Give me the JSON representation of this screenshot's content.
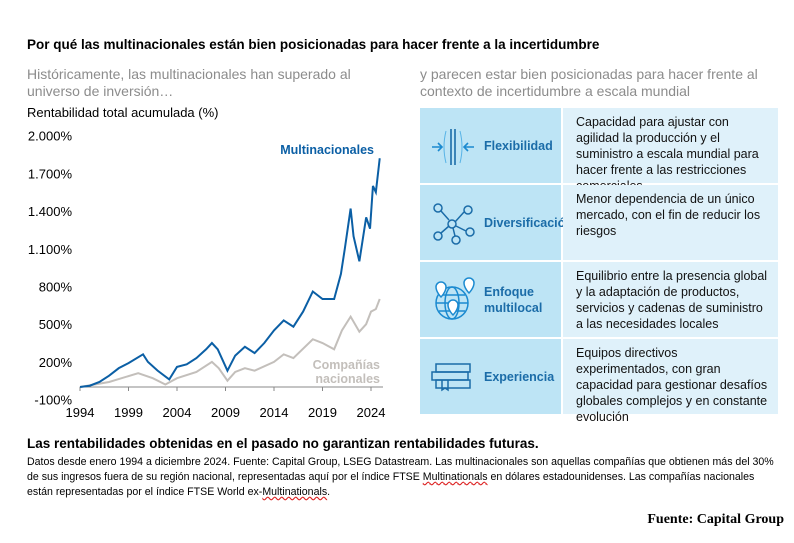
{
  "title": "Por qué las multinacionales están bien posicionadas para hacer frente a la incertidumbre",
  "left_subtitle": "Históricamente, las multinacionales han superado al universo de inversión…",
  "right_subtitle": "y parecen estar bien posicionadas para hacer frente al contexto de incertidumbre a escala mundial",
  "chart_data": {
    "type": "line",
    "ylabel": "Rentabilidad total acumulada (%)",
    "ylim": [
      -100,
      2000
    ],
    "yticks": [
      -100,
      200,
      500,
      800,
      1100,
      1400,
      1700,
      2000
    ],
    "ytick_labels": [
      "-100%",
      "200%",
      "500%",
      "800%",
      "1.100%",
      "1.400%",
      "1.700%",
      "2.000%"
    ],
    "xlim": [
      1994,
      2025
    ],
    "xticks": [
      1994,
      1999,
      2004,
      2009,
      2014,
      2019,
      2024
    ],
    "xtick_labels": [
      "1994",
      "1999",
      "2004",
      "2009",
      "2014",
      "2019",
      "2024"
    ],
    "grid": false,
    "series": [
      {
        "name": "Multinacionales",
        "color": "#0b5fa5",
        "x": [
          1994,
          1995,
          1996,
          1997,
          1998,
          1999,
          2000.5,
          2001,
          2002,
          2003.2,
          2004,
          2005,
          2006,
          2007,
          2007.6,
          2008.2,
          2009.2,
          2010,
          2011,
          2012,
          2013,
          2014,
          2015,
          2016,
          2017,
          2018,
          2019,
          2020.2,
          2020.9,
          2021.3,
          2021.9,
          2022.2,
          2022.8,
          2023.1,
          2023.5,
          2023.9,
          2024.2,
          2024.5,
          2024.9
        ],
        "y": [
          0,
          10,
          40,
          90,
          150,
          190,
          260,
          200,
          130,
          60,
          160,
          180,
          230,
          300,
          350,
          300,
          130,
          250,
          320,
          270,
          350,
          450,
          530,
          480,
          600,
          760,
          700,
          700,
          900,
          1100,
          1420,
          1200,
          1000,
          1150,
          1350,
          1260,
          1600,
          1550,
          1820
        ]
      },
      {
        "name": "Compañías nacionales",
        "color": "#c3bfbb",
        "x": [
          1994,
          1997,
          2000,
          2001.5,
          2002.8,
          2004,
          2006,
          2007.6,
          2008.3,
          2009.2,
          2010,
          2011,
          2012,
          2014,
          2015,
          2016,
          2018,
          2019,
          2020.2,
          2021,
          2021.9,
          2022.8,
          2023.5,
          2024,
          2024.5,
          2024.9
        ],
        "y": [
          0,
          40,
          110,
          70,
          20,
          70,
          120,
          200,
          150,
          50,
          120,
          150,
          130,
          200,
          260,
          230,
          380,
          350,
          300,
          450,
          560,
          440,
          500,
          600,
          620,
          700
        ]
      }
    ]
  },
  "rows": [
    {
      "icon": "compression-arrows-icon",
      "label": "Flexibilidad",
      "text": "Capacidad para ajustar con agilidad la producción y el suministro a escala mundial para hacer frente a las restricciones comerciales"
    },
    {
      "icon": "network-nodes-icon",
      "label": "Diversificación",
      "text": "Menor dependencia de un único mercado, con el fin de reducir los riesgos"
    },
    {
      "icon": "globe-pins-icon",
      "label": "Enfoque multilocal",
      "text": "Equilibrio entre la presencia global y la adaptación de productos, servicios y cadenas de suministro a las necesidades locales"
    },
    {
      "icon": "books-icon",
      "label": "Experiencia",
      "text": "Equipos directivos experimentados, con gran capacidad para gestionar desafíos globales complejos y en constante evolución"
    }
  ],
  "warning": "Las rentabilidades obtenidas en el pasado no garantizan rentabilidades futuras.",
  "notes_a": "Datos desde enero 1994 a diciembre 2024. Fuente: Capital Group, LSEG Datastream. Las multinacionales son aquellas compañías que obtienen más del 30% de sus ingresos fuera de su región nacional, representadas aquí por el índice FTSE ",
  "notes_b": "Multinationals",
  "notes_c": " en dólares estadounidenses. Las compañías nacionales están representadas por el índice FTSE World ex-",
  "notes_d": "Multinationals",
  "notes_e": ".",
  "source": "Fuente: Capital Group"
}
